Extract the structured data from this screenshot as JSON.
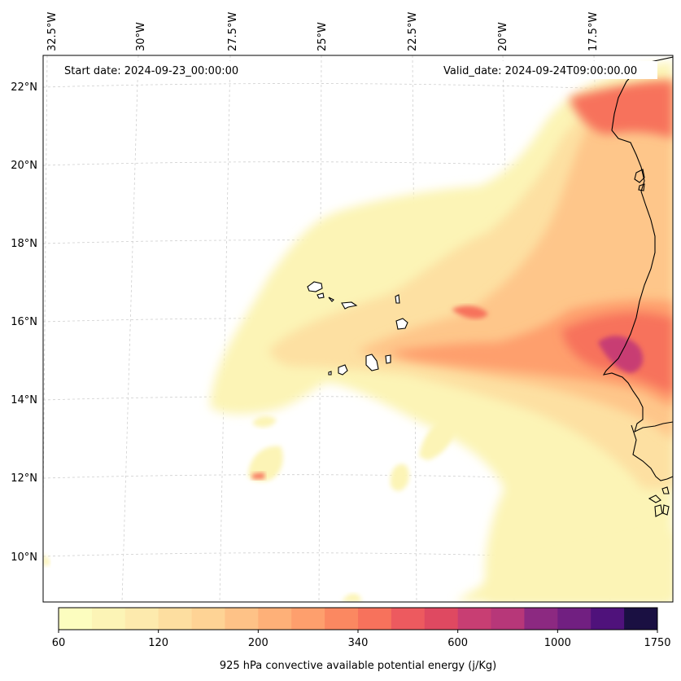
{
  "header": {
    "start_date": "Start date: 2024-09-23_00:00:00",
    "valid_date": "Valid_date: 2024-09-24T09:00:00.00"
  },
  "axes": {
    "lon_ticks": [
      "32.5°W",
      "30°W",
      "27.5°W",
      "25°W",
      "22.5°W",
      "20°W",
      "17.5°W"
    ],
    "lat_ticks": [
      "22°N",
      "20°N",
      "18°N",
      "16°N",
      "14°N",
      "12°N",
      "10°N"
    ]
  },
  "colorbar": {
    "label": "925 hPa convective available potential energy (j/Kg)",
    "tick_labels": [
      "60",
      "120",
      "200",
      "340",
      "600",
      "1000",
      "1750"
    ],
    "colors": [
      "#fcfdbf",
      "#fcf4b6",
      "#fdeaad",
      "#fddea0",
      "#fed395",
      "#fec287",
      "#feb078",
      "#fe9f6d",
      "#fb8861",
      "#f7725c",
      "#ed5a5f",
      "#df4961",
      "#c83e73",
      "#b73779",
      "#8c2981",
      "#711f81",
      "#4f127b",
      "#1a1042"
    ]
  },
  "map_data": {
    "field": "925 hPa convective available potential energy",
    "units": "j/Kg",
    "lon_range": [
      "32.5°W",
      "16°W"
    ],
    "lat_range": [
      "9°N",
      "22.5°N"
    ],
    "max_region": "coast near 15°N"
  }
}
